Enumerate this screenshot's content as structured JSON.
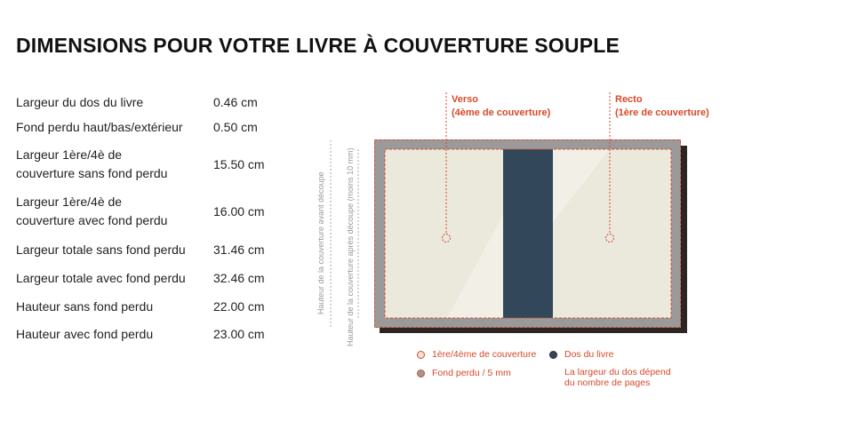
{
  "title": "DIMENSIONS POUR VOTRE LIVRE À COUVERTURE SOUPLE",
  "specs": [
    {
      "label_lines": [
        "Largeur du dos du livre"
      ],
      "value": "0.46 cm"
    },
    {
      "label_lines": [
        "Fond perdu haut/bas/extérieur"
      ],
      "value": "0.50 cm"
    },
    {
      "label_lines": [
        "Largeur 1ère/4è de",
        "couverture sans fond perdu"
      ],
      "value": "15.50 cm"
    },
    {
      "label_lines": [
        "Largeur 1ère/4è de",
        "couverture avec fond perdu"
      ],
      "value": "16.00 cm"
    },
    {
      "label_lines": [
        "Largeur totale sans fond perdu"
      ],
      "value": "31.46 cm"
    },
    {
      "label_lines": [
        "Largeur totale avec fond perdu"
      ],
      "value": "32.46 cm"
    },
    {
      "label_lines": [
        "Hauteur sans fond perdu"
      ],
      "value": "22.00 cm"
    },
    {
      "label_lines": [
        "Hauteur avec fond perdu"
      ],
      "value": "23.00 cm"
    }
  ],
  "diagram": {
    "verso_label": "Verso",
    "verso_sub": "(4ème de couverture)",
    "recto_label": "Recto",
    "recto_sub": "(1ère de couverture)",
    "height_before_cut": "Hauteur de la couverture avant découpe",
    "height_after_cut": "Hauteur de la couverture après découpe (moins 10 mm)"
  },
  "legend": {
    "cover": "1ère/4ème de couverture",
    "spine": "Dos du livre",
    "bleed": "Fond perdu / 5 mm",
    "spine_note_line1": "La largeur du dos dépend",
    "spine_note_line2": "du nombre de pages"
  },
  "colors": {
    "accent": "#d64a2a",
    "spine": "#33475b",
    "bleed": "#9a9a9a",
    "cover": "#ebe8dc",
    "shadow": "#2b2523"
  }
}
